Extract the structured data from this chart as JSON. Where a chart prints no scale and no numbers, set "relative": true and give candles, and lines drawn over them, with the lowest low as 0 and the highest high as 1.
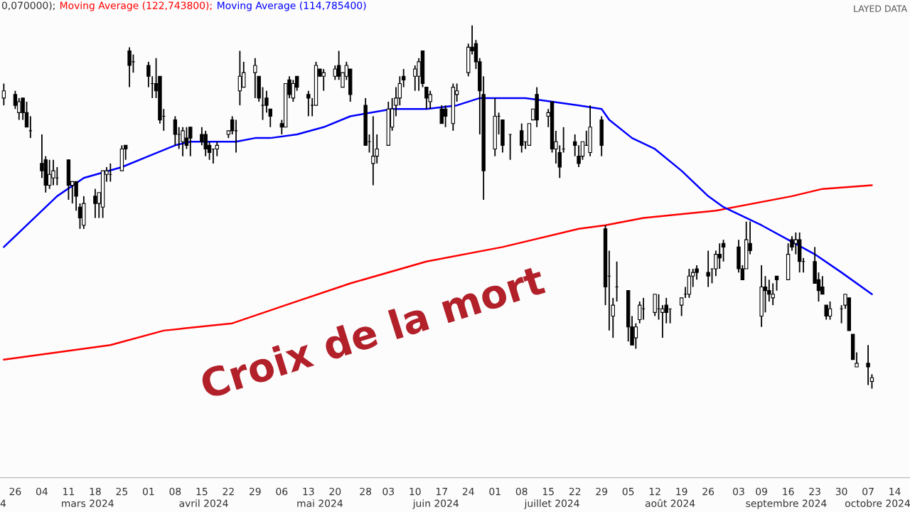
{
  "chart_data": {
    "type": "candlestick",
    "title": "Croix de la mort",
    "relative": true,
    "legend": "top left",
    "grid": false,
    "annotations": [
      "0,070000);",
      "LAYED DATA",
      "4",
      "mars 2024",
      "avril 2024",
      "mai 2024",
      "juin 2024",
      "juillet 2024",
      "août 2024",
      "septembre 2024",
      "octobre 2024"
    ],
    "x": [
      "2024-02-23",
      "2024-02-26",
      "2024-02-27",
      "2024-02-28",
      "2024-02-29",
      "2024-03-01",
      "2024-03-04",
      "2024-03-05",
      "2024-03-06",
      "2024-03-07",
      "2024-03-08",
      "2024-03-11",
      "2024-03-12",
      "2024-03-13",
      "2024-03-14",
      "2024-03-15",
      "2024-03-18",
      "2024-03-19",
      "2024-03-20",
      "2024-03-21",
      "2024-03-22",
      "2024-03-25",
      "2024-03-26",
      "2024-03-27",
      "2024-03-28",
      "2024-04-01",
      "2024-04-02",
      "2024-04-03",
      "2024-04-04",
      "2024-04-05",
      "2024-04-08",
      "2024-04-09",
      "2024-04-10",
      "2024-04-11",
      "2024-04-12",
      "2024-04-15",
      "2024-04-16",
      "2024-04-17",
      "2024-04-18",
      "2024-04-19",
      "2024-04-22",
      "2024-04-23",
      "2024-04-24",
      "2024-04-25",
      "2024-04-26",
      "2024-04-29",
      "2024-04-30",
      "2024-05-01",
      "2024-05-02",
      "2024-05-03",
      "2024-05-06",
      "2024-05-07",
      "2024-05-08",
      "2024-05-09",
      "2024-05-10",
      "2024-05-13",
      "2024-05-14",
      "2024-05-15",
      "2024-05-16",
      "2024-05-17",
      "2024-05-20",
      "2024-05-21",
      "2024-05-22",
      "2024-05-23",
      "2024-05-24",
      "2024-05-28",
      "2024-05-29",
      "2024-05-30",
      "2024-05-31",
      "2024-06-03",
      "2024-06-04",
      "2024-06-05",
      "2024-06-06",
      "2024-06-07",
      "2024-06-10",
      "2024-06-11",
      "2024-06-12",
      "2024-06-13",
      "2024-06-14",
      "2024-06-17",
      "2024-06-18",
      "2024-06-20",
      "2024-06-21",
      "2024-06-24",
      "2024-06-25",
      "2024-06-26",
      "2024-06-27",
      "2024-06-28",
      "2024-07-01",
      "2024-07-02",
      "2024-07-03",
      "2024-07-05",
      "2024-07-08",
      "2024-07-09",
      "2024-07-10",
      "2024-07-11",
      "2024-07-12",
      "2024-07-15",
      "2024-07-16",
      "2024-07-17",
      "2024-07-18",
      "2024-07-19",
      "2024-07-22",
      "2024-07-23",
      "2024-07-24",
      "2024-07-25",
      "2024-07-26",
      "2024-07-29",
      "2024-07-30",
      "2024-07-31",
      "2024-08-01",
      "2024-08-02",
      "2024-08-05",
      "2024-08-06",
      "2024-08-07",
      "2024-08-08",
      "2024-08-09",
      "2024-08-12",
      "2024-08-13",
      "2024-08-14",
      "2024-08-15",
      "2024-08-16",
      "2024-08-19",
      "2024-08-20",
      "2024-08-21",
      "2024-08-22",
      "2024-08-23",
      "2024-08-26",
      "2024-08-27",
      "2024-08-28",
      "2024-08-29",
      "2024-08-30",
      "2024-09-03",
      "2024-09-04",
      "2024-09-05",
      "2024-09-06",
      "2024-09-09",
      "2024-09-10",
      "2024-09-11",
      "2024-09-12",
      "2024-09-13",
      "2024-09-16",
      "2024-09-17",
      "2024-09-18",
      "2024-09-19",
      "2024-09-20",
      "2024-09-23",
      "2024-09-24",
      "2024-09-25",
      "2024-09-26",
      "2024-09-27",
      "2024-09-30",
      "2024-10-01",
      "2024-10-02",
      "2024-10-03",
      "2024-10-04",
      "2024-10-07",
      "2024-10-08"
    ],
    "ohlc": [
      [
        0.8,
        0.84,
        0.78,
        0.82
      ],
      [
        0.81,
        0.82,
        0.77,
        0.78
      ],
      [
        0.76,
        0.8,
        0.74,
        0.79
      ],
      [
        0.8,
        0.8,
        0.74,
        0.76
      ],
      [
        0.76,
        0.79,
        0.72,
        0.72
      ],
      [
        0.71,
        0.75,
        0.69,
        0.71
      ],
      [
        0.62,
        0.7,
        0.58,
        0.6
      ],
      [
        0.63,
        0.64,
        0.54,
        0.56
      ],
      [
        0.56,
        0.63,
        0.55,
        0.59
      ],
      [
        0.58,
        0.63,
        0.56,
        0.6
      ],
      [
        0.58,
        0.61,
        0.56,
        0.58
      ],
      [
        0.63,
        0.63,
        0.52,
        0.56
      ],
      [
        0.56,
        0.57,
        0.51,
        0.57
      ],
      [
        0.57,
        0.57,
        0.49,
        0.53
      ],
      [
        0.5,
        0.51,
        0.44,
        0.47
      ],
      [
        0.45,
        0.53,
        0.44,
        0.51
      ],
      [
        0.53,
        0.55,
        0.47,
        0.51
      ],
      [
        0.51,
        0.54,
        0.47,
        0.54
      ],
      [
        0.5,
        0.6,
        0.47,
        0.6
      ],
      [
        0.59,
        0.61,
        0.57,
        0.6
      ],
      [
        0.59,
        0.62,
        0.57,
        0.59
      ],
      [
        0.6,
        0.67,
        0.6,
        0.66
      ],
      [
        0.67,
        0.67,
        0.63,
        0.66
      ],
      [
        0.93,
        0.94,
        0.83,
        0.89
      ],
      [
        0.9,
        0.92,
        0.87,
        0.9
      ],
      [
        0.89,
        0.9,
        0.83,
        0.86
      ],
      [
        0.84,
        0.86,
        0.8,
        0.84
      ],
      [
        0.84,
        0.91,
        0.8,
        0.82
      ],
      [
        0.86,
        0.86,
        0.73,
        0.74
      ],
      [
        0.75,
        0.77,
        0.71,
        0.75
      ],
      [
        0.74,
        0.75,
        0.67,
        0.7
      ],
      [
        0.7,
        0.72,
        0.66,
        0.7
      ],
      [
        0.68,
        0.72,
        0.64,
        0.71
      ],
      [
        0.69,
        0.72,
        0.66,
        0.67
      ],
      [
        0.72,
        0.72,
        0.64,
        0.69
      ],
      [
        0.7,
        0.72,
        0.67,
        0.68
      ],
      [
        0.7,
        0.71,
        0.64,
        0.66
      ],
      [
        0.67,
        0.68,
        0.63,
        0.65
      ],
      [
        0.66,
        0.66,
        0.62,
        0.66
      ],
      [
        0.66,
        0.68,
        0.64,
        0.67
      ],
      [
        0.7,
        0.71,
        0.69,
        0.71
      ],
      [
        0.74,
        0.75,
        0.7,
        0.71
      ],
      [
        0.71,
        0.74,
        0.65,
        0.71
      ],
      [
        0.82,
        0.93,
        0.78,
        0.86
      ],
      [
        0.83,
        0.9,
        0.83,
        0.87
      ],
      [
        0.87,
        0.91,
        0.8,
        0.89
      ],
      [
        0.86,
        0.86,
        0.79,
        0.8
      ],
      [
        0.78,
        0.83,
        0.74,
        0.78
      ],
      [
        0.8,
        0.82,
        0.76,
        0.78
      ],
      [
        0.77,
        0.77,
        0.72,
        0.75
      ],
      [
        0.73,
        0.74,
        0.7,
        0.72
      ],
      [
        0.72,
        0.84,
        0.72,
        0.84
      ],
      [
        0.85,
        0.86,
        0.8,
        0.81
      ],
      [
        0.8,
        0.85,
        0.79,
        0.84
      ],
      [
        0.86,
        0.86,
        0.82,
        0.83
      ],
      [
        0.81,
        0.82,
        0.75,
        0.8
      ],
      [
        0.78,
        0.8,
        0.75,
        0.78
      ],
      [
        0.78,
        0.9,
        0.78,
        0.89
      ],
      [
        0.88,
        0.88,
        0.86,
        0.86
      ],
      [
        0.86,
        0.88,
        0.82,
        0.87
      ],
      [
        0.86,
        0.89,
        0.85,
        0.88
      ],
      [
        0.89,
        0.93,
        0.85,
        0.86
      ],
      [
        0.83,
        0.87,
        0.83,
        0.87
      ],
      [
        0.86,
        0.9,
        0.85,
        0.89
      ],
      [
        0.88,
        0.88,
        0.79,
        0.81
      ],
      [
        0.78,
        0.8,
        0.67,
        0.67
      ],
      [
        0.68,
        0.7,
        0.65,
        0.68
      ],
      [
        0.62,
        0.75,
        0.56,
        0.64
      ],
      [
        0.64,
        0.7,
        0.62,
        0.66
      ],
      [
        0.67,
        0.79,
        0.67,
        0.77
      ],
      [
        0.72,
        0.8,
        0.71,
        0.77
      ],
      [
        0.78,
        0.83,
        0.75,
        0.8
      ],
      [
        0.8,
        0.86,
        0.78,
        0.84
      ],
      [
        0.86,
        0.88,
        0.83,
        0.85
      ],
      [
        0.86,
        0.89,
        0.82,
        0.88
      ],
      [
        0.86,
        0.91,
        0.82,
        0.9
      ],
      [
        0.93,
        0.93,
        0.83,
        0.84
      ],
      [
        0.83,
        0.83,
        0.77,
        0.8
      ],
      [
        0.79,
        0.82,
        0.77,
        0.81
      ],
      [
        0.77,
        0.78,
        0.73,
        0.73
      ],
      [
        0.77,
        0.78,
        0.72,
        0.75
      ],
      [
        0.73,
        0.84,
        0.71,
        0.83
      ],
      [
        0.81,
        0.84,
        0.79,
        0.82
      ],
      [
        0.87,
        0.95,
        0.86,
        0.94
      ],
      [
        0.94,
        1,
        0.92,
        0.93
      ],
      [
        0.95,
        0.96,
        0.88,
        0.9
      ],
      [
        0.9,
        0.91,
        0.7,
        0.82
      ],
      [
        0.81,
        0.86,
        0.52,
        0.6
      ],
      [
        0.66,
        0.8,
        0.64,
        0.75
      ],
      [
        0.75,
        0.76,
        0.7,
        0.75
      ],
      [
        0.74,
        0.74,
        0.65,
        0.67
      ],
      [
        0.7,
        0.7,
        0.63,
        0.7
      ],
      [
        0.71,
        0.73,
        0.65,
        0.67
      ],
      [
        0.68,
        0.68,
        0.66,
        0.68
      ],
      [
        0.67,
        0.73,
        0.67,
        0.73
      ],
      [
        0.74,
        0.77,
        0.74,
        0.77
      ],
      [
        0.81,
        0.83,
        0.72,
        0.74
      ],
      [
        0.75,
        0.77,
        0.72,
        0.76
      ],
      [
        0.79,
        0.79,
        0.65,
        0.66
      ],
      [
        0.66,
        0.71,
        0.62,
        0.68
      ],
      [
        0.65,
        0.67,
        0.58,
        0.61
      ],
      [
        0.66,
        0.72,
        0.65,
        0.66
      ],
      [
        0.68,
        0.7,
        0.64,
        0.67
      ],
      [
        0.64,
        0.67,
        0.61,
        0.62
      ],
      [
        0.64,
        0.68,
        0.63,
        0.68
      ],
      [
        0.67,
        0.71,
        0.67,
        0.67
      ],
      [
        0.65,
        0.78,
        0.64,
        0.72
      ],
      [
        0.74,
        0.75,
        0.64,
        0.67
      ],
      [
        0.44,
        0.45,
        0.23,
        0.28
      ],
      [
        0.31,
        0.38,
        0.16,
        0.31
      ],
      [
        0.2,
        0.25,
        0.14,
        0.23
      ],
      [
        0.28,
        0.35,
        0.24,
        0.28
      ],
      [
        0.27,
        0.27,
        0.13,
        0.17
      ],
      [
        0.17,
        0.2,
        0.12,
        0.12
      ],
      [
        0.14,
        0.18,
        0.11,
        0.17
      ],
      [
        0.19,
        0.24,
        0.18,
        0.23
      ],
      [
        0.22,
        0.25,
        0.19,
        0.22
      ],
      [
        0.21,
        0.26,
        0.2,
        0.26
      ],
      [
        0.22,
        0.26,
        0.19,
        0.22
      ],
      [
        0.21,
        0.23,
        0.14,
        0.22
      ],
      [
        0.23,
        0.25,
        0.18,
        0.21
      ],
      [
        0.22,
        0.22,
        0.18,
        0.22
      ],
      [
        0.23,
        0.25,
        0.2,
        0.25
      ],
      [
        0.26,
        0.28,
        0.25,
        0.26
      ],
      [
        0.26,
        0.33,
        0.25,
        0.31
      ],
      [
        0.31,
        0.33,
        0.28,
        0.32
      ],
      [
        0.33,
        0.34,
        0.3,
        0.32
      ],
      [
        0.32,
        0.38,
        0.28,
        0.31
      ],
      [
        0.33,
        0.33,
        0.29,
        0.33
      ],
      [
        0.33,
        0.38,
        0.31,
        0.37
      ],
      [
        0.37,
        0.4,
        0.33,
        0.36
      ],
      [
        0.4,
        0.41,
        0.35,
        0.39
      ],
      [
        0.39,
        0.41,
        0.32,
        0.33
      ],
      [
        0.33,
        0.34,
        0.3,
        0.3
      ],
      [
        0.33,
        0.46,
        0.33,
        0.41
      ],
      [
        0.4,
        0.46,
        0.37,
        0.38
      ],
      [
        0.2,
        0.34,
        0.17,
        0.28
      ],
      [
        0.28,
        0.31,
        0.21,
        0.27
      ],
      [
        0.27,
        0.3,
        0.24,
        0.26
      ],
      [
        0.25,
        0.29,
        0.23,
        0.26
      ],
      [
        0.31,
        0.31,
        0.27,
        0.3
      ],
      [
        0.3,
        0.4,
        0.3,
        0.37
      ],
      [
        0.41,
        0.42,
        0.38,
        0.39
      ],
      [
        0.4,
        0.43,
        0.37,
        0.41
      ],
      [
        0.41,
        0.43,
        0.32,
        0.35
      ],
      [
        0.35,
        0.36,
        0.32,
        0.35
      ],
      [
        0.35,
        0.39,
        0.29,
        0.29
      ],
      [
        0.3,
        0.32,
        0.24,
        0.27
      ],
      [
        0.28,
        0.31,
        0.26,
        0.26
      ],
      [
        0.23,
        0.23,
        0.19,
        0.2
      ],
      [
        0.2,
        0.24,
        0.19,
        0.22
      ],
      [
        0.22,
        0.23,
        0.18,
        0.22
      ],
      [
        0.23,
        0.26,
        0.22,
        0.26
      ],
      [
        0.25,
        0.25,
        0.16,
        0.16
      ],
      [
        0.15,
        0.15,
        0.08,
        0.08
      ],
      [
        0.06,
        0.1,
        0.06,
        0.07
      ],
      [
        0.07,
        0.12,
        0.01,
        0.06
      ],
      [
        0.02,
        0.04,
        0,
        0.03
      ]
    ],
    "series": [
      {
        "type": "line",
        "name": "Moving Average (122,743800);",
        "color": "#ff0000",
        "x": [
          "2024-02-23",
          "2024-03-22",
          "2024-04-05",
          "2024-04-23",
          "2024-05-07",
          "2024-05-24",
          "2024-06-13",
          "2024-07-03",
          "2024-07-23",
          "2024-07-30",
          "2024-08-09",
          "2024-08-28",
          "2024-09-17",
          "2024-09-25",
          "2024-10-08"
        ],
        "values": [
          0.08,
          0.12,
          0.16,
          0.18,
          0.23,
          0.29,
          0.35,
          0.39,
          0.44,
          0.45,
          0.47,
          0.49,
          0.53,
          0.55,
          0.56
        ]
      },
      {
        "type": "line",
        "name": "Moving Average (114,785400)",
        "color": "#0000ff",
        "x": [
          "2024-02-23",
          "2024-03-01",
          "2024-03-08",
          "2024-03-15",
          "2024-03-25",
          "2024-04-01",
          "2024-04-08",
          "2024-04-12",
          "2024-04-19",
          "2024-04-24",
          "2024-04-29",
          "2024-05-03",
          "2024-05-10",
          "2024-05-17",
          "2024-05-24",
          "2024-06-04",
          "2024-06-13",
          "2024-06-21",
          "2024-06-27",
          "2024-07-03",
          "2024-07-09",
          "2024-07-16",
          "2024-07-23",
          "2024-07-29",
          "2024-07-31",
          "2024-08-06",
          "2024-08-12",
          "2024-08-19",
          "2024-08-26",
          "2024-08-30",
          "2024-09-09",
          "2024-09-16",
          "2024-09-23",
          "2024-09-30",
          "2024-10-08"
        ],
        "values": [
          0.39,
          0.46,
          0.53,
          0.58,
          0.61,
          0.64,
          0.67,
          0.68,
          0.68,
          0.68,
          0.69,
          0.69,
          0.7,
          0.72,
          0.75,
          0.77,
          0.77,
          0.78,
          0.8,
          0.8,
          0.8,
          0.79,
          0.78,
          0.77,
          0.74,
          0.69,
          0.66,
          0.6,
          0.53,
          0.5,
          0.45,
          0.41,
          0.37,
          0.32,
          0.26
        ]
      }
    ],
    "xlim": [
      "2024-02-22",
      "2024-10-18"
    ],
    "xticks": [
      {
        "value": "2024-02-26",
        "label": "26"
      },
      {
        "value": "2024-03-04",
        "label": "04"
      },
      {
        "value": "2024-03-11",
        "label": "11"
      },
      {
        "value": "2024-03-18",
        "label": "18"
      },
      {
        "value": "2024-03-25",
        "label": "25"
      },
      {
        "value": "2024-04-01",
        "label": "01"
      },
      {
        "value": "2024-04-08",
        "label": "08"
      },
      {
        "value": "2024-04-15",
        "label": "15"
      },
      {
        "value": "2024-04-22",
        "label": "22"
      },
      {
        "value": "2024-04-29",
        "label": "29"
      },
      {
        "value": "2024-05-06",
        "label": "06"
      },
      {
        "value": "2024-05-13",
        "label": "13"
      },
      {
        "value": "2024-05-20",
        "label": "20"
      },
      {
        "value": "2024-05-28",
        "label": "28"
      },
      {
        "value": "2024-06-03",
        "label": "03"
      },
      {
        "value": "2024-06-10",
        "label": "10"
      },
      {
        "value": "2024-06-17",
        "label": "17"
      },
      {
        "value": "2024-06-24",
        "label": "24"
      },
      {
        "value": "2024-07-01",
        "label": "01"
      },
      {
        "value": "2024-07-08",
        "label": "08"
      },
      {
        "value": "2024-07-15",
        "label": "15"
      },
      {
        "value": "2024-07-22",
        "label": "22"
      },
      {
        "value": "2024-07-29",
        "label": "29"
      },
      {
        "value": "2024-08-05",
        "label": "05"
      },
      {
        "value": "2024-08-12",
        "label": "12"
      },
      {
        "value": "2024-08-19",
        "label": "19"
      },
      {
        "value": "2024-08-26",
        "label": "26"
      },
      {
        "value": "2024-09-03",
        "label": "03"
      },
      {
        "value": "2024-09-09",
        "label": "09"
      },
      {
        "value": "2024-09-16",
        "label": "16"
      },
      {
        "value": "2024-09-23",
        "label": "23"
      },
      {
        "value": "2024-09-30",
        "label": "30"
      },
      {
        "value": "2024-10-07",
        "label": "07"
      },
      {
        "value": "2024-10-14",
        "label": "14"
      }
    ]
  }
}
